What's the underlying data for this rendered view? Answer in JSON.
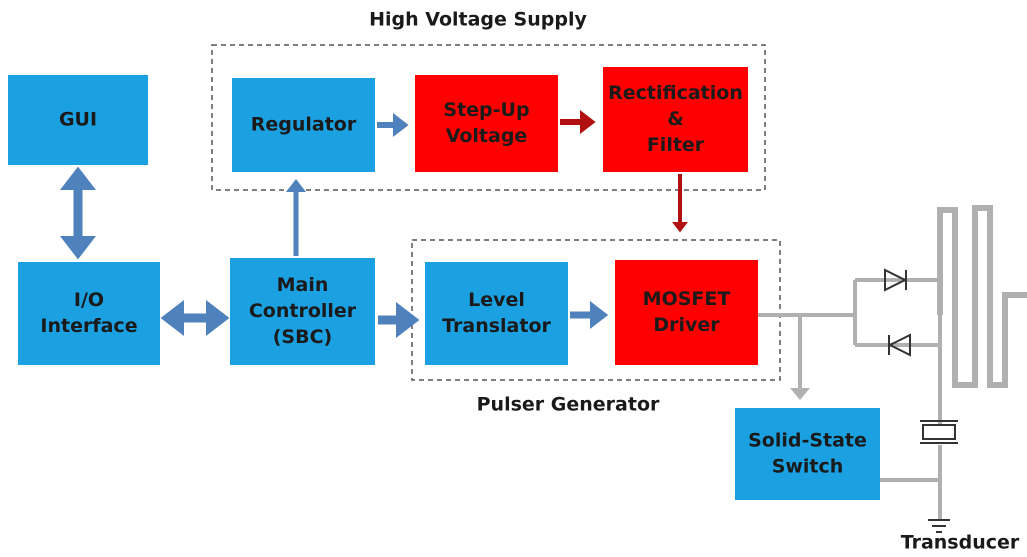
{
  "groups": [
    {
      "label": "High Voltage Supply"
    },
    {
      "label": "Pulser Generator"
    }
  ],
  "nodes": [
    {
      "lines": [
        "GUI"
      ]
    },
    {
      "lines": [
        "I/O",
        "Interface"
      ]
    },
    {
      "lines": [
        "Main",
        "Controller",
        "(SBC)"
      ]
    },
    {
      "lines": [
        "Regulator"
      ]
    },
    {
      "lines": [
        "Step-Up",
        "Voltage"
      ]
    },
    {
      "lines": [
        "Rectification",
        "&",
        "Filter"
      ]
    },
    {
      "lines": [
        "Level",
        "Translator"
      ]
    },
    {
      "lines": [
        "MOSFET",
        "Driver"
      ]
    },
    {
      "lines": [
        "Solid-State",
        "Switch"
      ]
    }
  ],
  "labels": {
    "transducer": "Transducer"
  }
}
